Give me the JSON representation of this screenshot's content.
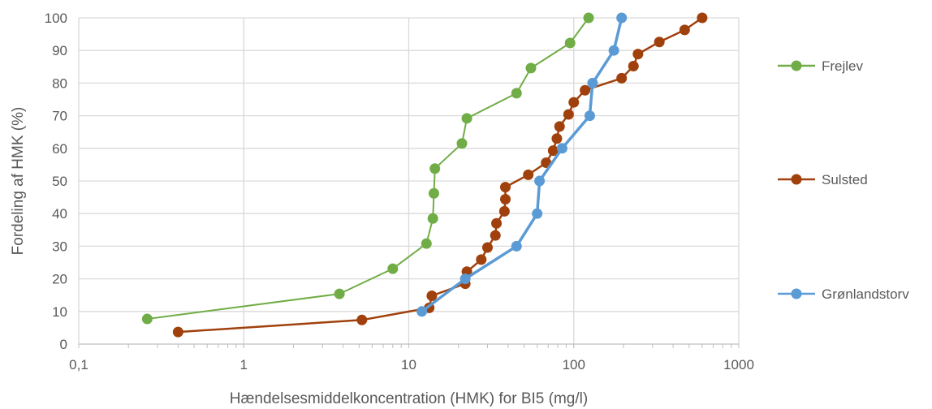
{
  "chart_data": {
    "type": "line",
    "title": "",
    "xlabel": "Hændelsesmiddelkoncentration (HMK) for BI5 (mg/l)",
    "ylabel": "Fordeling af HMK (%)",
    "xscale": "log",
    "xlim": [
      0.1,
      1000
    ],
    "ylim": [
      0,
      100
    ],
    "x_ticks": [
      "0,1",
      "1",
      "10",
      "100",
      "1000"
    ],
    "y_ticks": [
      "0",
      "10",
      "20",
      "30",
      "40",
      "50",
      "60",
      "70",
      "80",
      "90",
      "100"
    ],
    "grid": "major gridlines",
    "legend_position": "right",
    "series": [
      {
        "name": "Frejlev",
        "color": "#70ad47",
        "x": [
          0.26,
          3.8,
          8.0,
          12.8,
          14.0,
          14.2,
          14.4,
          21.0,
          22.5,
          45.0,
          55.0,
          95.0,
          123.0
        ],
        "y": [
          7.7,
          15.4,
          23.1,
          30.8,
          38.5,
          46.2,
          53.8,
          61.5,
          69.2,
          76.9,
          84.6,
          92.3,
          100.0
        ]
      },
      {
        "name": "Sulsted",
        "color": "#a0410d",
        "x": [
          0.4,
          5.2,
          13.3,
          13.8,
          22.0,
          22.5,
          27.5,
          30.0,
          33.5,
          34.0,
          38.0,
          38.5,
          38.5,
          53.0,
          68.0,
          75.0,
          79.0,
          82.0,
          93.0,
          100.0,
          117.0,
          195.0,
          230.0,
          245.0,
          330.0,
          470.0,
          600.0
        ],
        "y": [
          3.7,
          7.4,
          11.1,
          14.8,
          18.5,
          22.2,
          25.9,
          29.6,
          33.3,
          37.0,
          40.7,
          44.4,
          48.1,
          51.9,
          55.6,
          59.3,
          63.0,
          66.7,
          70.4,
          74.1,
          77.8,
          81.5,
          85.2,
          88.9,
          92.6,
          96.3,
          100.0
        ]
      },
      {
        "name": "Grønlandstorv",
        "color": "#5b9bd5",
        "x": [
          12.0,
          22.0,
          45.0,
          60.0,
          62.0,
          85.0,
          125.0,
          130.0,
          175.0,
          195.0
        ],
        "y": [
          10,
          20,
          30,
          40,
          50,
          60,
          70,
          80,
          90,
          100
        ]
      }
    ]
  }
}
